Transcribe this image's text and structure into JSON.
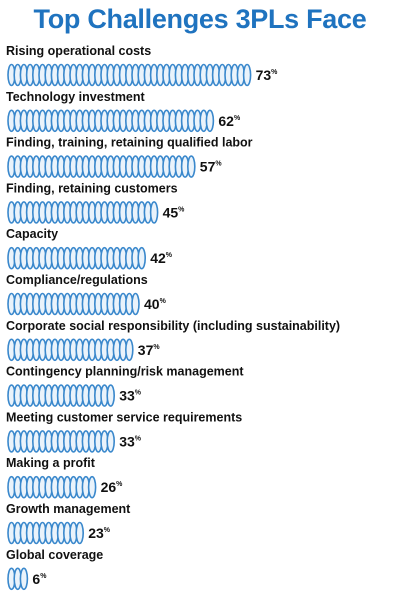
{
  "chart_data": {
    "type": "bar",
    "title": "Top Challenges 3PLs Face",
    "categories": [
      "Rising operational costs",
      "Technology investment",
      "Finding, training, retaining qualified labor",
      "Finding, retaining customers",
      "Capacity",
      "Compliance/regulations",
      "Corporate social responsibility (including sustainability)",
      "Contingency planning/risk management",
      "Meeting customer service requirements",
      "Making a profit",
      "Growth management",
      "Global coverage"
    ],
    "values": [
      73,
      62,
      57,
      45,
      42,
      40,
      37,
      33,
      33,
      26,
      23,
      6
    ],
    "value_suffix": "%",
    "orientation": "horizontal",
    "xlim": [
      0,
      73
    ],
    "grid": false,
    "legend": "none",
    "colors": {
      "title": "#1f73bf",
      "coil_stroke": "#3a88cc",
      "coil_fill": "#eaf3fb",
      "label": "#111111"
    }
  }
}
